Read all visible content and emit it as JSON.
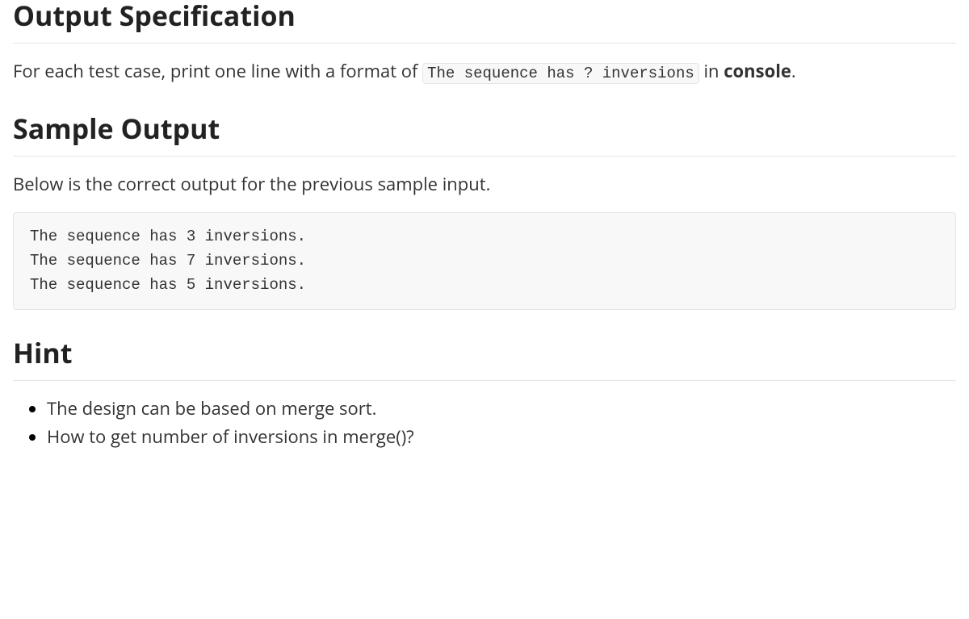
{
  "output_spec": {
    "heading": "Output Specification",
    "para_prefix": "For each test case, print one line with a format of ",
    "code": "The sequence has ? inversions",
    "para_mid": " in ",
    "bold_word": "console",
    "para_suffix": "."
  },
  "sample_output": {
    "heading": "Sample Output",
    "intro": "Below is the correct output for the previous sample input.",
    "code": "The sequence has 3 inversions.\nThe sequence has 7 inversions.\nThe sequence has 5 inversions."
  },
  "hint": {
    "heading": "Hint",
    "items": [
      "The design can be based on merge sort.",
      "How to get number of inversions in merge()?"
    ]
  }
}
